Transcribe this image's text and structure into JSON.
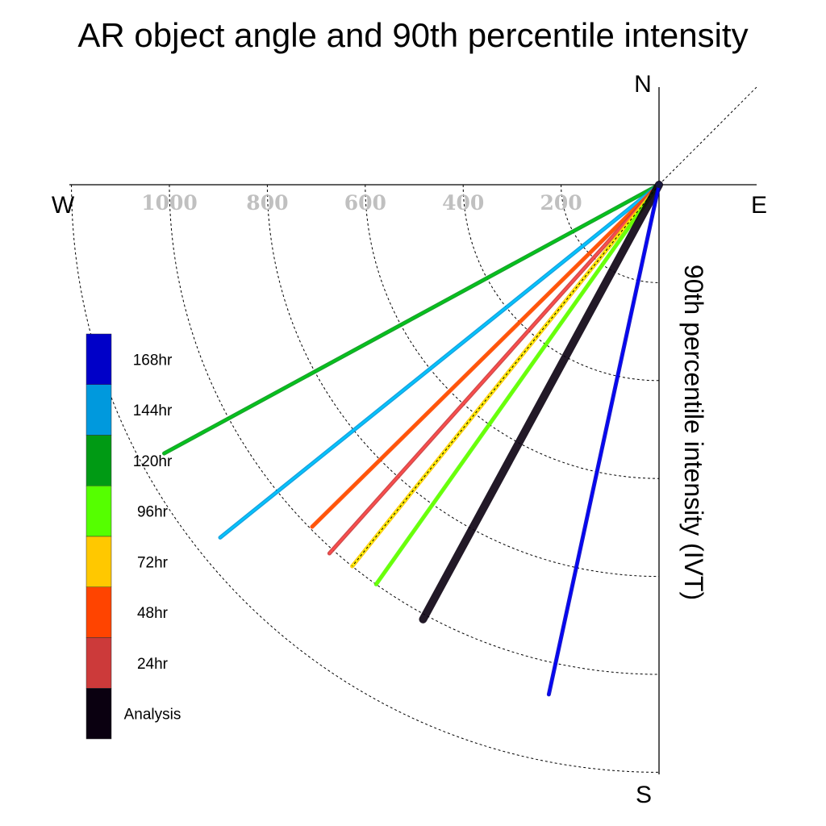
{
  "chart_data": {
    "type": "polar-vector",
    "title": "AR object angle and 90th percentile intensity",
    "radial_label": "90th percentile intensity (IVT)",
    "compass": {
      "north": "N",
      "south": "S",
      "east": "E",
      "west": "W"
    },
    "radial_ticks": [
      200,
      400,
      600,
      800,
      1000
    ],
    "rmax": 1200,
    "series": [
      {
        "name": "120hr",
        "angle_deg_from_south_cw": 61.5,
        "intensity": 1150,
        "color": "#009a14"
      },
      {
        "name": "144hr",
        "angle_deg_from_south_cw": 51.2,
        "intensity": 1150,
        "color": "#0099dd"
      },
      {
        "name": "48hr",
        "angle_deg_from_south_cw": 45.4,
        "intensity": 995,
        "color": "#ff4400"
      },
      {
        "name": "24hr",
        "angle_deg_from_south_cw": 41.8,
        "intensity": 1010,
        "color": "#cc3a3a"
      },
      {
        "name": "72hr",
        "angle_deg_from_south_cw": 38.8,
        "intensity": 1000,
        "color": "#ffc800"
      },
      {
        "name": "96hr",
        "angle_deg_from_south_cw": 35.3,
        "intensity": 1000,
        "color": "#55ff00"
      },
      {
        "name": "Analysis",
        "angle_deg_from_south_cw": 28.5,
        "intensity": 1010,
        "color": "#0a0010"
      },
      {
        "name": "168hr",
        "angle_deg_from_south_cw": 12.2,
        "intensity": 1065,
        "color": "#0000c8"
      }
    ],
    "legend": [
      {
        "label": "168hr",
        "color": "#0000c8"
      },
      {
        "label": "144hr",
        "color": "#0099dd"
      },
      {
        "label": "120hr",
        "color": "#009a14"
      },
      {
        "label": "96hr",
        "color": "#55ff00"
      },
      {
        "label": "72hr",
        "color": "#ffc800"
      },
      {
        "label": "48hr",
        "color": "#ff4400"
      },
      {
        "label": "24hr",
        "color": "#cc3a3a"
      },
      {
        "label": "Analysis",
        "color": "#0a0010"
      }
    ]
  }
}
